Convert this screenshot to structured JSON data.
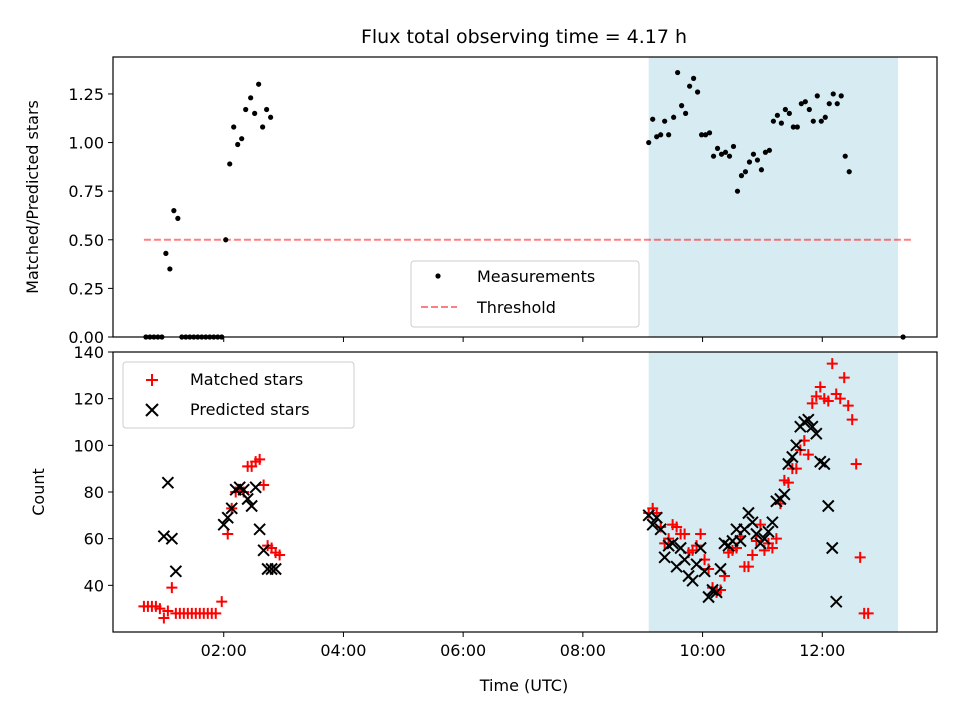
{
  "figure": {
    "title": "Flux total observing time = 4.17 h",
    "xlabel": "Time (UTC)"
  },
  "colors": {
    "shade": "#add8e6",
    "threshold": "#ff0000",
    "matched": "#ff0000",
    "predicted": "#000000",
    "measurement": "#000000"
  },
  "chart_data": [
    {
      "type": "scatter",
      "panel": "top",
      "ylabel": "Matched/Predicted stars",
      "xlim": [
        "00:09",
        "13:55"
      ],
      "ylim": [
        0,
        1.44
      ],
      "yticks": [
        0.0,
        0.25,
        0.5,
        0.75,
        1.0,
        1.25
      ],
      "ytick_labels": [
        "0.00",
        "0.25",
        "0.50",
        "0.75",
        "1.00",
        "1.25"
      ],
      "shaded_span": [
        "09:06",
        "13:16"
      ],
      "legend": {
        "position": "lower-center"
      },
      "series": [
        {
          "name": "Measurements",
          "kind": "scatter",
          "marker": "dot",
          "points": [
            [
              "00:42",
              0.0
            ],
            [
              "00:46",
              0.0
            ],
            [
              "00:50",
              0.0
            ],
            [
              "00:54",
              0.0
            ],
            [
              "00:58",
              0.0
            ],
            [
              "01:02",
              0.43
            ],
            [
              "01:06",
              0.35
            ],
            [
              "01:10",
              0.65
            ],
            [
              "01:14",
              0.61
            ],
            [
              "01:18",
              0.0
            ],
            [
              "01:22",
              0.0
            ],
            [
              "01:26",
              0.0
            ],
            [
              "01:30",
              0.0
            ],
            [
              "01:34",
              0.0
            ],
            [
              "01:38",
              0.0
            ],
            [
              "01:42",
              0.0
            ],
            [
              "01:46",
              0.0
            ],
            [
              "01:50",
              0.0
            ],
            [
              "01:54",
              0.0
            ],
            [
              "01:58",
              0.0
            ],
            [
              "02:02",
              0.5
            ],
            [
              "02:06",
              0.89
            ],
            [
              "02:10",
              1.08
            ],
            [
              "02:14",
              0.99
            ],
            [
              "02:18",
              1.02
            ],
            [
              "02:22",
              1.17
            ],
            [
              "02:27",
              1.23
            ],
            [
              "02:31",
              1.15
            ],
            [
              "02:35",
              1.3
            ],
            [
              "02:39",
              1.08
            ],
            [
              "02:43",
              1.17
            ],
            [
              "02:47",
              1.13
            ],
            [
              "09:06",
              1.0
            ],
            [
              "09:10",
              1.12
            ],
            [
              "09:14",
              1.03
            ],
            [
              "09:18",
              1.04
            ],
            [
              "09:22",
              1.11
            ],
            [
              "09:26",
              1.04
            ],
            [
              "09:31",
              1.13
            ],
            [
              "09:35",
              1.36
            ],
            [
              "09:39",
              1.19
            ],
            [
              "09:43",
              1.15
            ],
            [
              "09:47",
              1.29
            ],
            [
              "09:51",
              1.33
            ],
            [
              "09:55",
              1.26
            ],
            [
              "09:59",
              1.04
            ],
            [
              "10:03",
              1.04
            ],
            [
              "10:07",
              1.05
            ],
            [
              "10:11",
              0.93
            ],
            [
              "10:15",
              0.97
            ],
            [
              "10:19",
              0.94
            ],
            [
              "10:23",
              0.95
            ],
            [
              "10:27",
              0.93
            ],
            [
              "10:31",
              0.98
            ],
            [
              "10:35",
              0.75
            ],
            [
              "10:39",
              0.83
            ],
            [
              "10:43",
              0.85
            ],
            [
              "10:47",
              0.9
            ],
            [
              "10:51",
              0.94
            ],
            [
              "10:55",
              0.91
            ],
            [
              "10:59",
              0.86
            ],
            [
              "11:03",
              0.95
            ],
            [
              "11:07",
              0.96
            ],
            [
              "11:11",
              1.11
            ],
            [
              "11:15",
              1.14
            ],
            [
              "11:19",
              1.1
            ],
            [
              "11:23",
              1.17
            ],
            [
              "11:27",
              1.15
            ],
            [
              "11:31",
              1.08
            ],
            [
              "11:35",
              1.08
            ],
            [
              "11:39",
              1.2
            ],
            [
              "11:43",
              1.21
            ],
            [
              "11:47",
              1.17
            ],
            [
              "11:51",
              1.11
            ],
            [
              "11:55",
              1.24
            ],
            [
              "11:59",
              1.11
            ],
            [
              "12:03",
              1.13
            ],
            [
              "12:07",
              1.2
            ],
            [
              "12:11",
              1.25
            ],
            [
              "12:15",
              1.2
            ],
            [
              "12:19",
              1.24
            ],
            [
              "12:23",
              0.93
            ],
            [
              "12:27",
              0.85
            ],
            [
              "13:21",
              0.0
            ]
          ]
        },
        {
          "name": "Threshold",
          "kind": "line",
          "style": "dashed",
          "x": [
            "00:40",
            "13:30"
          ],
          "y": [
            0.5,
            0.5
          ]
        }
      ]
    },
    {
      "type": "scatter",
      "panel": "bottom",
      "ylabel": "Count",
      "xlim": [
        "00:09",
        "13:55"
      ],
      "ylim": [
        20,
        140
      ],
      "yticks": [
        40,
        60,
        80,
        100,
        120,
        140
      ],
      "xticks": [
        "02:00",
        "04:00",
        "06:00",
        "08:00",
        "10:00",
        "12:00"
      ],
      "shaded_span": [
        "09:06",
        "13:16"
      ],
      "legend": {
        "position": "top-left"
      },
      "series": [
        {
          "name": "Matched stars",
          "kind": "scatter",
          "marker": "plus",
          "points": [
            [
              "00:40",
              31
            ],
            [
              "00:44",
              31
            ],
            [
              "00:48",
              31
            ],
            [
              "00:52",
              31
            ],
            [
              "00:56",
              30
            ],
            [
              "01:00",
              26
            ],
            [
              "01:04",
              29
            ],
            [
              "01:08",
              39
            ],
            [
              "01:12",
              28
            ],
            [
              "01:16",
              28
            ],
            [
              "01:20",
              28
            ],
            [
              "01:24",
              28
            ],
            [
              "01:28",
              28
            ],
            [
              "01:32",
              28
            ],
            [
              "01:36",
              28
            ],
            [
              "01:40",
              28
            ],
            [
              "01:44",
              28
            ],
            [
              "01:48",
              28
            ],
            [
              "01:52",
              28
            ],
            [
              "01:58",
              33
            ],
            [
              "02:04",
              62
            ],
            [
              "02:08",
              73
            ],
            [
              "02:12",
              80
            ],
            [
              "02:16",
              81
            ],
            [
              "02:20",
              80
            ],
            [
              "02:24",
              91
            ],
            [
              "02:28",
              91
            ],
            [
              "02:32",
              93
            ],
            [
              "02:36",
              94
            ],
            [
              "02:40",
              83
            ],
            [
              "02:44",
              57
            ],
            [
              "02:48",
              56
            ],
            [
              "02:52",
              54
            ],
            [
              "02:56",
              53
            ],
            [
              "09:06",
              71
            ],
            [
              "09:10",
              73
            ],
            [
              "09:14",
              71
            ],
            [
              "09:18",
              65
            ],
            [
              "09:22",
              58
            ],
            [
              "09:26",
              60
            ],
            [
              "09:30",
              66
            ],
            [
              "09:34",
              65
            ],
            [
              "09:38",
              62
            ],
            [
              "09:42",
              62
            ],
            [
              "09:46",
              54
            ],
            [
              "09:50",
              55
            ],
            [
              "09:54",
              57
            ],
            [
              "09:58",
              62
            ],
            [
              "10:02",
              51
            ],
            [
              "10:06",
              47
            ],
            [
              "10:10",
              39
            ],
            [
              "10:14",
              37
            ],
            [
              "10:18",
              38
            ],
            [
              "10:22",
              44
            ],
            [
              "10:26",
              54
            ],
            [
              "10:30",
              55
            ],
            [
              "10:34",
              56
            ],
            [
              "10:38",
              61
            ],
            [
              "10:42",
              48
            ],
            [
              "10:46",
              48
            ],
            [
              "10:50",
              53
            ],
            [
              "10:54",
              59
            ],
            [
              "10:58",
              66
            ],
            [
              "11:02",
              55
            ],
            [
              "11:06",
              58
            ],
            [
              "11:10",
              56
            ],
            [
              "11:14",
              60
            ],
            [
              "11:18",
              75
            ],
            [
              "11:22",
              85
            ],
            [
              "11:26",
              84
            ],
            [
              "11:30",
              90
            ],
            [
              "11:34",
              90
            ],
            [
              "11:38",
              98
            ],
            [
              "11:42",
              102
            ],
            [
              "11:46",
              96
            ],
            [
              "11:50",
              118
            ],
            [
              "11:54",
              121
            ],
            [
              "11:58",
              125
            ],
            [
              "12:02",
              120
            ],
            [
              "12:06",
              119
            ],
            [
              "12:10",
              135
            ],
            [
              "12:14",
              122
            ],
            [
              "12:18",
              120
            ],
            [
              "12:22",
              129
            ],
            [
              "12:26",
              117
            ],
            [
              "12:30",
              111
            ],
            [
              "12:34",
              92
            ],
            [
              "12:38",
              52
            ],
            [
              "12:42",
              28
            ],
            [
              "12:46",
              28
            ]
          ]
        },
        {
          "name": "Predicted stars",
          "kind": "scatter",
          "marker": "x",
          "points": [
            [
              "01:00",
              61
            ],
            [
              "01:04",
              84
            ],
            [
              "01:08",
              60
            ],
            [
              "01:12",
              46
            ],
            [
              "02:00",
              66
            ],
            [
              "02:04",
              69
            ],
            [
              "02:08",
              73
            ],
            [
              "02:12",
              81
            ],
            [
              "02:16",
              82
            ],
            [
              "02:20",
              81
            ],
            [
              "02:24",
              77
            ],
            [
              "02:28",
              74
            ],
            [
              "02:32",
              82
            ],
            [
              "02:36",
              64
            ],
            [
              "02:40",
              55
            ],
            [
              "02:44",
              47
            ],
            [
              "02:48",
              47
            ],
            [
              "02:52",
              47
            ],
            [
              "09:06",
              70
            ],
            [
              "09:10",
              66
            ],
            [
              "09:14",
              69
            ],
            [
              "09:18",
              64
            ],
            [
              "09:22",
              52
            ],
            [
              "09:26",
              57
            ],
            [
              "09:30",
              58
            ],
            [
              "09:34",
              48
            ],
            [
              "09:38",
              56
            ],
            [
              "09:42",
              51
            ],
            [
              "09:46",
              44
            ],
            [
              "09:50",
              42
            ],
            [
              "09:54",
              49
            ],
            [
              "09:58",
              56
            ],
            [
              "10:02",
              46
            ],
            [
              "10:06",
              35
            ],
            [
              "10:10",
              38
            ],
            [
              "10:14",
              37
            ],
            [
              "10:18",
              47
            ],
            [
              "10:22",
              58
            ],
            [
              "10:26",
              57
            ],
            [
              "10:30",
              59
            ],
            [
              "10:34",
              64
            ],
            [
              "10:38",
              59
            ],
            [
              "10:42",
              64
            ],
            [
              "10:46",
              71
            ],
            [
              "10:50",
              67
            ],
            [
              "10:54",
              62
            ],
            [
              "10:58",
              58
            ],
            [
              "11:02",
              60
            ],
            [
              "11:06",
              63
            ],
            [
              "11:10",
              67
            ],
            [
              "11:14",
              76
            ],
            [
              "11:18",
              77
            ],
            [
              "11:22",
              79
            ],
            [
              "11:26",
              92
            ],
            [
              "11:30",
              95
            ],
            [
              "11:34",
              100
            ],
            [
              "11:38",
              108
            ],
            [
              "11:42",
              110
            ],
            [
              "11:46",
              111
            ],
            [
              "11:50",
              108
            ],
            [
              "11:54",
              105
            ],
            [
              "11:58",
              93
            ],
            [
              "12:02",
              92
            ],
            [
              "12:06",
              74
            ],
            [
              "12:10",
              56
            ],
            [
              "12:14",
              33
            ]
          ]
        }
      ]
    }
  ]
}
